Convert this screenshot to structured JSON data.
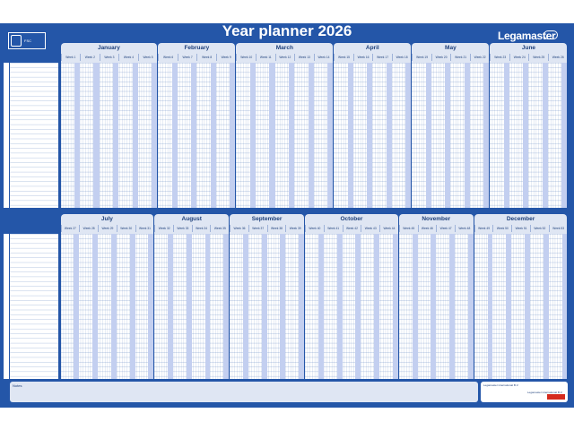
{
  "title": "Year planner 2026",
  "brand": "Legamaster",
  "colors": {
    "background": "#2456a8",
    "header": "#dfe6f3",
    "weekend": "#c3cff0",
    "grid": "#ffffff",
    "text": "#1d3f7a"
  },
  "eco": {
    "icon": "fsc-logo-icon",
    "text": "FSC"
  },
  "months": [
    {
      "name": "January",
      "weeks": [
        "Week 1",
        "Week 2",
        "Week 3",
        "Week 4",
        "Week 5"
      ]
    },
    {
      "name": "February",
      "weeks": [
        "Week 6",
        "Week 7",
        "Week 8",
        "Week 9"
      ]
    },
    {
      "name": "March",
      "weeks": [
        "Week 10",
        "Week 11",
        "Week 12",
        "Week 13",
        "Week 14"
      ]
    },
    {
      "name": "April",
      "weeks": [
        "Week 15",
        "Week 16",
        "Week 17",
        "Week 18"
      ]
    },
    {
      "name": "May",
      "weeks": [
        "Week 19",
        "Week 20",
        "Week 21",
        "Week 22"
      ]
    },
    {
      "name": "June",
      "weeks": [
        "Week 23",
        "Week 24",
        "Week 25",
        "Week 26"
      ]
    },
    {
      "name": "July",
      "weeks": [
        "Week 27",
        "Week 28",
        "Week 29",
        "Week 30",
        "Week 31"
      ]
    },
    {
      "name": "August",
      "weeks": [
        "Week 32",
        "Week 33",
        "Week 34",
        "Week 35"
      ]
    },
    {
      "name": "September",
      "weeks": [
        "Week 36",
        "Week 37",
        "Week 38",
        "Week 39"
      ]
    },
    {
      "name": "October",
      "weeks": [
        "Week 40",
        "Week 41",
        "Week 42",
        "Week 43",
        "Week 44"
      ]
    },
    {
      "name": "November",
      "weeks": [
        "Week 45",
        "Week 46",
        "Week 47",
        "Week 48"
      ]
    },
    {
      "name": "December",
      "weeks": [
        "Week 49",
        "Week 50",
        "Week 51",
        "Week 52",
        "Week 53"
      ]
    }
  ],
  "notes_label": "Notes",
  "info": {
    "title": "Legamaster international B.V."
  }
}
